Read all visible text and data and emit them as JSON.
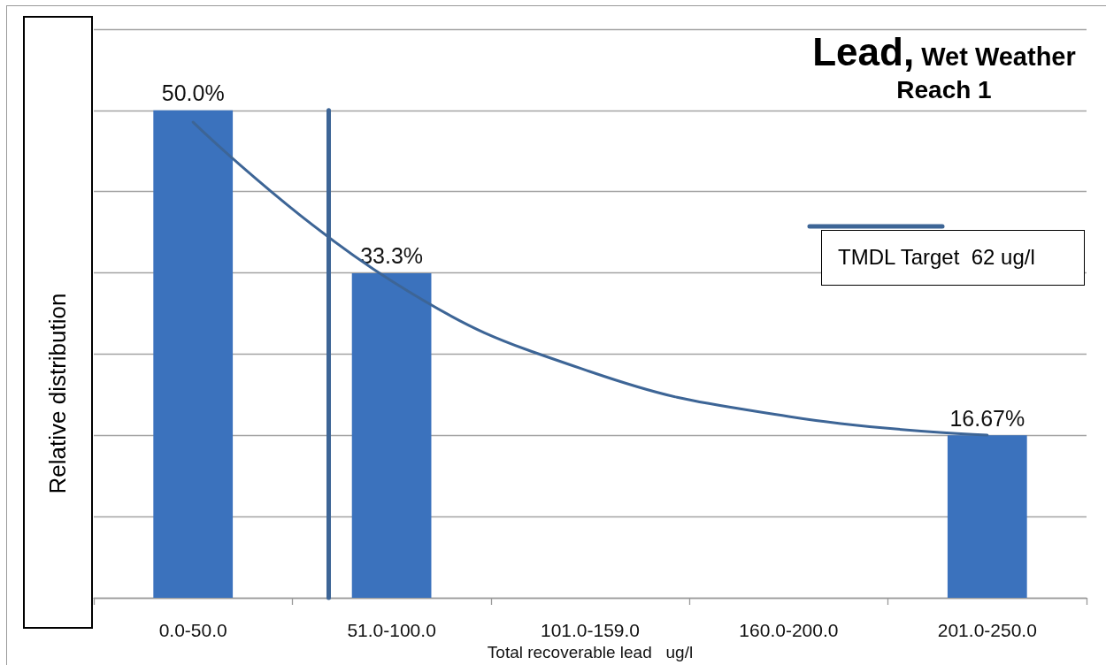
{
  "chart_data": {
    "type": "bar",
    "title": "Lead, Wet Weather",
    "subtitle": "Reach 1",
    "xlabel": "Total recoverable lead   ug/l",
    "ylabel": "Relative distribution",
    "categories": [
      "0.0-50.0",
      "51.0-100.0",
      "101.0-159.0",
      "160.0-200.0",
      "201.0-250.0"
    ],
    "series": [
      {
        "type": "bar",
        "color": "#3b72bd",
        "values": [
          50.0,
          33.3,
          0,
          0,
          16.67
        ],
        "value_labels": [
          "50.0%",
          "33.3%",
          null,
          null,
          "16.67%"
        ]
      },
      {
        "type": "line",
        "color": "#3d6596",
        "values": [
          48.8,
          32.5,
          23.2,
          18.6,
          16.7
        ]
      }
    ],
    "ylim": [
      0,
      58.33
    ],
    "yticks": [
      {
        "value": 0,
        "label": null
      },
      {
        "value": 8.33,
        "label": null
      },
      {
        "value": 16.67,
        "label": null
      },
      {
        "value": 25,
        "label": null
      },
      {
        "value": 33.33,
        "label": null
      },
      {
        "value": 41.67,
        "label": null
      },
      {
        "value": 50,
        "label": null
      },
      {
        "value": 58.33,
        "label": null
      }
    ],
    "tick_labels": "x",
    "grid": "y",
    "marker": "none",
    "ref_lines": [
      {
        "axis": "x",
        "value": "51.0-100.0",
        "color": "#3d6596"
      }
    ],
    "annotations": [
      "TMDL Target  62 ug/l"
    ]
  }
}
